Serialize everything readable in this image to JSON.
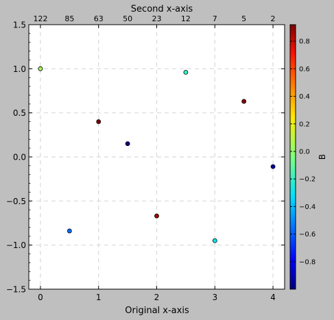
{
  "chart_data": {
    "type": "scatter",
    "title": "Second x-axis",
    "xlabel": "Original x-axis",
    "ylabel": "",
    "xlim": [
      -0.2,
      4.2
    ],
    "ylim": [
      -1.5,
      1.5
    ],
    "grid": true,
    "x_ticks": [
      "0",
      "1",
      "2",
      "3",
      "4"
    ],
    "y_ticks": [
      "1.5",
      "1.0",
      "0.5",
      "0.0",
      "−0.5",
      "−1.0",
      "−1.5"
    ],
    "secondary_x_ticks": [
      "122",
      "85",
      "63",
      "50",
      "23",
      "12",
      "7",
      "5",
      "2"
    ],
    "points": [
      {
        "x": 0.0,
        "y": 1.0,
        "c": 0.05
      },
      {
        "x": 0.5,
        "y": -0.84,
        "c": -0.55
      },
      {
        "x": 1.0,
        "y": 0.4,
        "c": 0.95
      },
      {
        "x": 1.5,
        "y": 0.15,
        "c": -1.0
      },
      {
        "x": 2.0,
        "y": -0.67,
        "c": 0.85
      },
      {
        "x": 2.5,
        "y": 0.96,
        "c": -0.2
      },
      {
        "x": 3.0,
        "y": -0.95,
        "c": -0.3
      },
      {
        "x": 3.5,
        "y": 0.63,
        "c": 0.9
      },
      {
        "x": 4.0,
        "y": -0.11,
        "c": -0.95
      }
    ],
    "colorbar": {
      "label": "B",
      "range": [
        -1.0,
        0.92
      ],
      "ticks": [
        "0.8",
        "0.6",
        "0.4",
        "0.2",
        "0.0",
        "−0.2",
        "−0.4",
        "−0.6",
        "−0.8"
      ],
      "tick_values": [
        0.8,
        0.6,
        0.4,
        0.2,
        0.0,
        -0.2,
        -0.4,
        -0.6,
        -0.8
      ],
      "colormap": "jet"
    }
  }
}
